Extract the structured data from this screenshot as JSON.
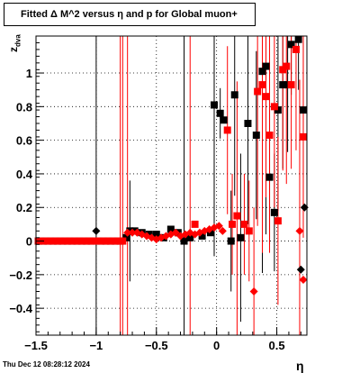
{
  "chart_data": {
    "type": "scatter",
    "title": "Fitted Δ M^2 versus η and p for Global muon+",
    "xlabel": "η",
    "ylabel": "z",
    "ylabel_sub": "dva",
    "xlim": [
      -1.5,
      0.75
    ],
    "ylim": [
      -0.56,
      1.22
    ],
    "xticks": [
      -1.5,
      -1,
      -0.5,
      0,
      0.5
    ],
    "xtick_labels": [
      "−1.5",
      "−1",
      "−0.5",
      "0",
      "0.5"
    ],
    "yticks": [
      -0.4,
      -0.2,
      0,
      0.2,
      0.4,
      0.6,
      0.8,
      1
    ],
    "ytick_labels": [
      "−0.4",
      "−0.2",
      "0",
      "0.2",
      "0.4",
      "0.6",
      "0.8",
      "1"
    ],
    "grid": true,
    "series": [
      {
        "color": "#000000",
        "points": [
          {
            "x": -1.48,
            "y": 0.0
          },
          {
            "x": -1.44,
            "y": 0.0
          },
          {
            "x": -1.4,
            "y": 0.0
          },
          {
            "x": -1.36,
            "y": 0.0
          },
          {
            "x": -1.32,
            "y": 0.0
          },
          {
            "x": -1.28,
            "y": 0.0
          },
          {
            "x": -1.24,
            "y": 0.0
          },
          {
            "x": -1.2,
            "y": 0.0
          },
          {
            "x": -1.16,
            "y": 0.0
          },
          {
            "x": -1.12,
            "y": 0.0
          },
          {
            "x": -1.08,
            "y": 0.0
          },
          {
            "x": -1.04,
            "y": 0.0
          },
          {
            "x": -1.0,
            "y": 0.06,
            "err": 1.3,
            "shape": "diamond"
          },
          {
            "x": -0.96,
            "y": 0.0
          },
          {
            "x": -0.92,
            "y": 0.0
          },
          {
            "x": -0.88,
            "y": 0.0
          },
          {
            "x": -0.84,
            "y": 0.0
          },
          {
            "x": -0.8,
            "y": 0.0
          },
          {
            "x": -0.75,
            "y": 0.02
          },
          {
            "x": -0.72,
            "y": 0.06,
            "err": 0.3
          },
          {
            "x": -0.68,
            "y": 0.06
          },
          {
            "x": -0.62,
            "y": 0.05
          },
          {
            "x": -0.56,
            "y": 0.04
          },
          {
            "x": -0.5,
            "y": 0.04
          },
          {
            "x": -0.44,
            "y": 0.02
          },
          {
            "x": -0.38,
            "y": 0.07
          },
          {
            "x": -0.32,
            "y": 0.05
          },
          {
            "x": -0.27,
            "y": 0.0,
            "err": 1.3
          },
          {
            "x": -0.22,
            "y": 0.02
          },
          {
            "x": -0.12,
            "y": 0.03
          },
          {
            "x": -0.05,
            "y": 0.05
          },
          {
            "x": -0.02,
            "y": 0.81,
            "err": 0.9
          },
          {
            "x": 0.03,
            "y": 0.76,
            "err": 0.15
          },
          {
            "x": 0.06,
            "y": 0.72
          },
          {
            "x": 0.12,
            "y": 0.0,
            "err": 0.3
          },
          {
            "x": 0.15,
            "y": 0.87,
            "err": 0.6
          },
          {
            "x": 0.2,
            "y": 0.02,
            "err": 0.5
          },
          {
            "x": 0.26,
            "y": 0.7,
            "err": 0.6
          },
          {
            "x": 0.33,
            "y": 0.63,
            "err": 0.5
          },
          {
            "x": 0.38,
            "y": 1.01,
            "err": 1.2
          },
          {
            "x": 0.41,
            "y": 1.04,
            "err": 1.0
          },
          {
            "x": 0.44,
            "y": 0.38,
            "err": 0.4
          },
          {
            "x": 0.48,
            "y": 0.17,
            "err": 0.35
          },
          {
            "x": 0.51,
            "y": 0.78,
            "err": 0.6
          },
          {
            "x": 0.55,
            "y": 0.93,
            "err": 0.5
          },
          {
            "x": 0.59,
            "y": 0.93,
            "err": 0.4
          },
          {
            "x": 0.62,
            "y": 1.17,
            "err": 0.3
          },
          {
            "x": 0.68,
            "y": 1.2,
            "err": 0.3
          },
          {
            "x": 0.72,
            "y": 0.78,
            "err": 0.4
          },
          {
            "x": 0.7,
            "y": -0.17,
            "shape": "diamond"
          },
          {
            "x": 0.73,
            "y": 0.2,
            "shape": "diamond"
          }
        ]
      },
      {
        "color": "#ff0000",
        "points": [
          {
            "x": -1.48,
            "y": 0.0
          },
          {
            "x": -1.44,
            "y": 0.0
          },
          {
            "x": -1.4,
            "y": 0.0
          },
          {
            "x": -1.36,
            "y": 0.0
          },
          {
            "x": -1.32,
            "y": 0.0
          },
          {
            "x": -1.28,
            "y": 0.0
          },
          {
            "x": -1.24,
            "y": 0.0
          },
          {
            "x": -1.2,
            "y": 0.0
          },
          {
            "x": -1.16,
            "y": 0.0
          },
          {
            "x": -1.12,
            "y": 0.0
          },
          {
            "x": -1.08,
            "y": 0.0
          },
          {
            "x": -1.04,
            "y": 0.0
          },
          {
            "x": -1.0,
            "y": 0.0
          },
          {
            "x": -0.96,
            "y": 0.0
          },
          {
            "x": -0.92,
            "y": 0.0
          },
          {
            "x": -0.88,
            "y": 0.0
          },
          {
            "x": -0.84,
            "y": 0.0
          },
          {
            "x": -0.8,
            "y": 0.0,
            "err": 1.3
          },
          {
            "x": -0.78,
            "y": 0.0,
            "err": 1.3
          },
          {
            "x": -0.74,
            "y": 0.05,
            "err": 1.3,
            "shape": "diamond"
          },
          {
            "x": -0.7,
            "y": 0.05,
            "shape": "diamond"
          },
          {
            "x": -0.66,
            "y": 0.05,
            "shape": "diamond"
          },
          {
            "x": -0.62,
            "y": 0.04,
            "shape": "diamond"
          },
          {
            "x": -0.58,
            "y": 0.03,
            "shape": "diamond"
          },
          {
            "x": -0.54,
            "y": 0.02,
            "shape": "diamond"
          },
          {
            "x": -0.5,
            "y": 0.01,
            "shape": "diamond"
          },
          {
            "x": -0.46,
            "y": 0.02,
            "shape": "diamond"
          },
          {
            "x": -0.42,
            "y": 0.03,
            "shape": "diamond"
          },
          {
            "x": -0.38,
            "y": 0.04,
            "shape": "diamond"
          },
          {
            "x": -0.34,
            "y": 0.05,
            "shape": "diamond"
          },
          {
            "x": -0.3,
            "y": 0.03,
            "shape": "diamond"
          },
          {
            "x": -0.26,
            "y": 0.04,
            "shape": "diamond"
          },
          {
            "x": -0.22,
            "y": 0.05,
            "err": 1.3,
            "shape": "diamond"
          },
          {
            "x": -0.18,
            "y": 0.04,
            "shape": "diamond"
          },
          {
            "x": -0.14,
            "y": 0.05,
            "shape": "diamond"
          },
          {
            "x": -0.1,
            "y": 0.06,
            "shape": "diamond"
          },
          {
            "x": -0.06,
            "y": 0.07,
            "shape": "diamond"
          },
          {
            "x": -0.02,
            "y": 0.08,
            "shape": "diamond"
          },
          {
            "x": 0.02,
            "y": 0.09,
            "shape": "diamond"
          },
          {
            "x": 0.05,
            "y": 0.06,
            "shape": "diamond"
          },
          {
            "x": -0.18,
            "y": 0.1
          },
          {
            "x": 0.09,
            "y": 0.66,
            "err": 0.5
          },
          {
            "x": 0.13,
            "y": 0.1,
            "err": 0.3
          },
          {
            "x": 0.17,
            "y": 0.15,
            "err": 0.8
          },
          {
            "x": 0.23,
            "y": 0.1,
            "err": 0.3
          },
          {
            "x": 0.27,
            "y": 0.06,
            "err": 0.3
          },
          {
            "x": 0.31,
            "y": -0.3,
            "err": 0.5,
            "shape": "diamond"
          },
          {
            "x": 0.34,
            "y": 0.89,
            "err": 0.8
          },
          {
            "x": 0.38,
            "y": 0.93,
            "err": 1.0
          },
          {
            "x": 0.41,
            "y": 0.86,
            "err": 0.6
          },
          {
            "x": 0.44,
            "y": 0.63,
            "err": 0.7
          },
          {
            "x": 0.48,
            "y": 0.8,
            "err": 0.6
          },
          {
            "x": 0.51,
            "y": 0.12,
            "err": 0.5
          },
          {
            "x": 0.55,
            "y": 1.02,
            "err": 0.6
          },
          {
            "x": 0.58,
            "y": 1.04,
            "err": 0.7
          },
          {
            "x": 0.62,
            "y": 0.93,
            "err": 0.5
          },
          {
            "x": 0.66,
            "y": 1.14,
            "err": 0.6
          },
          {
            "x": 0.69,
            "y": 0.06,
            "err": 0.9,
            "shape": "diamond"
          },
          {
            "x": 0.72,
            "y": 0.62,
            "err": 0.6
          },
          {
            "x": 0.72,
            "y": -0.23,
            "shape": "diamond"
          }
        ]
      }
    ]
  },
  "footer": {
    "datestamp": "Thu Dec 12 08:28:12 2024"
  }
}
